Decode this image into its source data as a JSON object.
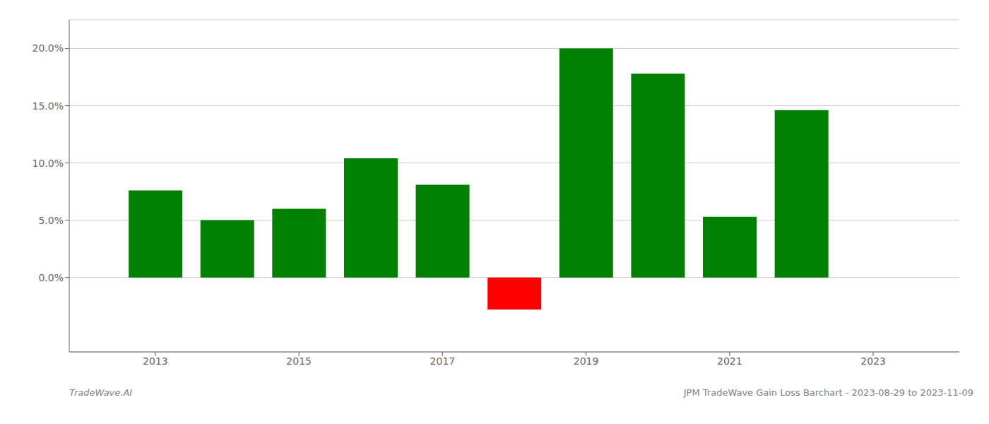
{
  "chart_data": {
    "type": "bar",
    "x": [
      2013,
      2014,
      2015,
      2016,
      2017,
      2018,
      2019,
      2020,
      2021,
      2022
    ],
    "values": [
      0.076,
      0.05,
      0.06,
      0.104,
      0.081,
      -0.028,
      0.2,
      0.178,
      0.053,
      0.146
    ],
    "colors": [
      "#008000",
      "#008000",
      "#008000",
      "#008000",
      "#008000",
      "#ff0000",
      "#008000",
      "#008000",
      "#008000",
      "#008000"
    ],
    "xlim": [
      2011.8,
      2024.2
    ],
    "xticks": [
      2013,
      2015,
      2017,
      2019,
      2021,
      2023
    ],
    "ylim": [
      -0.065,
      0.225
    ],
    "yticks": [
      {
        "value": 0.0,
        "label": "0.0%"
      },
      {
        "value": 0.05,
        "label": "5.0%"
      },
      {
        "value": 0.1,
        "label": "10.0%"
      },
      {
        "value": 0.15,
        "label": "15.0%"
      },
      {
        "value": 0.2,
        "label": "20.0%"
      }
    ],
    "grid": true,
    "annotations": [
      "TradeWave.AI",
      "JPM TradeWave Gain Loss Barchart - 2023-08-29 to 2023-11-09"
    ]
  }
}
